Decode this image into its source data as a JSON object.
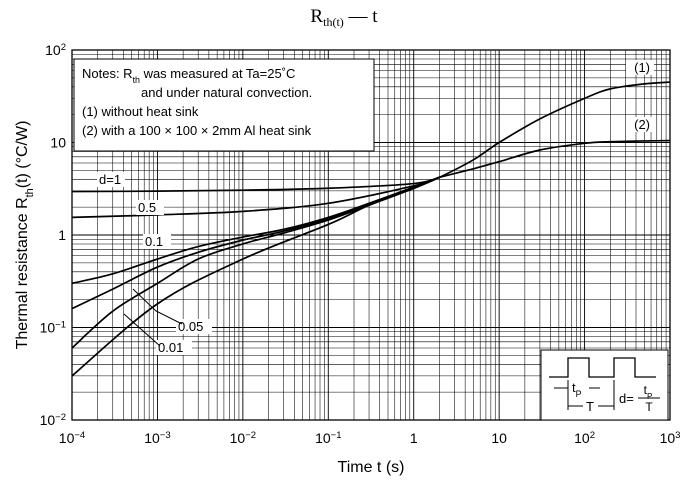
{
  "title": {
    "main": "R",
    "sub": "th(t)",
    "rest": " — t"
  },
  "axes": {
    "xlabel": "Time   t   (s)",
    "ylabel_prefix": "Thermal resistance   R",
    "ylabel_sub": "th",
    "ylabel_suffix": "(t)   (°C/W)"
  },
  "notes": {
    "line1_a": "Notes: R",
    "line1_sub": "th",
    "line1_b": " was measured at Ta=25˚C",
    "line2": "and under natural convection.",
    "line3": "(1) without heat sink",
    "line4": "(2) with a 100 × 100 × 2mm Al heat sink"
  },
  "inset": {
    "tp_label": "t",
    "tp_sub": "P",
    "T_label": "T",
    "formula_lhs": "d=",
    "formula_num": "t",
    "formula_num_sub": "P",
    "formula_den": "T"
  },
  "chart_data": {
    "type": "line",
    "title": "Rth(t) — t",
    "xlabel": "Time t (s)",
    "ylabel": "Thermal resistance Rth(t) (°C/W)",
    "x_scale": "log",
    "y_scale": "log",
    "xlim": [
      0.0001,
      1000
    ],
    "ylim": [
      0.01,
      100
    ],
    "x_ticks": [
      {
        "base": "10",
        "exp": "−4",
        "value": 0.0001
      },
      {
        "base": "10",
        "exp": "−3",
        "value": 0.001
      },
      {
        "base": "10",
        "exp": "−2",
        "value": 0.01
      },
      {
        "base": "10",
        "exp": "−1",
        "value": 0.1
      },
      {
        "base": "1",
        "exp": "",
        "value": 1
      },
      {
        "base": "10",
        "exp": "",
        "value": 10
      },
      {
        "base": "10",
        "exp": "2",
        "value": 100
      },
      {
        "base": "10",
        "exp": "3",
        "value": 1000
      }
    ],
    "y_ticks": [
      {
        "base": "10",
        "exp": "2",
        "value": 100
      },
      {
        "base": "10",
        "exp": "",
        "value": 10
      },
      {
        "base": "1",
        "exp": "",
        "value": 1
      },
      {
        "base": "10",
        "exp": "−1",
        "value": 0.1
      },
      {
        "base": "10",
        "exp": "−2",
        "value": 0.01
      }
    ],
    "grid": true,
    "series": [
      {
        "name": "(1)",
        "x": [
          0.0001,
          0.001,
          0.01,
          0.1,
          0.3,
          1,
          2,
          5,
          10,
          30,
          100,
          200,
          500,
          1000
        ],
        "y": [
          0.03,
          0.18,
          0.55,
          1.3,
          2.1,
          3.2,
          4.2,
          6.5,
          10,
          18,
          30,
          38,
          43,
          45
        ]
      },
      {
        "name": "(2)",
        "x": [
          2,
          5,
          10,
          30,
          100,
          200,
          1000
        ],
        "y": [
          4.2,
          5.2,
          6.2,
          8.3,
          9.8,
          10.2,
          10.5
        ]
      },
      {
        "name": "0.01",
        "x": [
          0.0001,
          0.0003,
          0.001,
          0.003,
          0.01,
          0.03,
          0.1,
          0.3,
          1,
          2
        ],
        "y": [
          0.06,
          0.15,
          0.3,
          0.55,
          0.8,
          1.05,
          1.45,
          2.1,
          3.2,
          4.2
        ]
      },
      {
        "name": "0.05",
        "x": [
          0.0001,
          0.0003,
          0.001,
          0.003,
          0.01,
          0.03,
          0.1,
          0.3,
          1,
          2
        ],
        "y": [
          0.16,
          0.26,
          0.45,
          0.65,
          0.88,
          1.1,
          1.5,
          2.15,
          3.25,
          4.2
        ]
      },
      {
        "name": "0.1",
        "x": [
          0.0001,
          0.0003,
          0.001,
          0.003,
          0.01,
          0.03,
          0.1,
          0.3,
          1,
          2
        ],
        "y": [
          0.3,
          0.38,
          0.55,
          0.75,
          0.95,
          1.15,
          1.55,
          2.2,
          3.3,
          4.2
        ]
      },
      {
        "name": "0.5",
        "x": [
          0.0001,
          0.001,
          0.01,
          0.1,
          1,
          2
        ],
        "y": [
          1.55,
          1.65,
          1.8,
          2.2,
          3.4,
          4.2
        ]
      },
      {
        "name": "d=1",
        "x": [
          0.0001,
          0.001,
          0.01,
          0.1,
          1,
          2
        ],
        "y": [
          2.95,
          2.98,
          3.05,
          3.2,
          3.6,
          4.2
        ]
      }
    ],
    "curve_labels": [
      {
        "text": "(1)"
      },
      {
        "text": "(2)"
      },
      {
        "text": "d=1"
      },
      {
        "text": "0.5"
      },
      {
        "text": "0.1"
      },
      {
        "text": "0.05"
      },
      {
        "text": "0.01"
      }
    ]
  }
}
